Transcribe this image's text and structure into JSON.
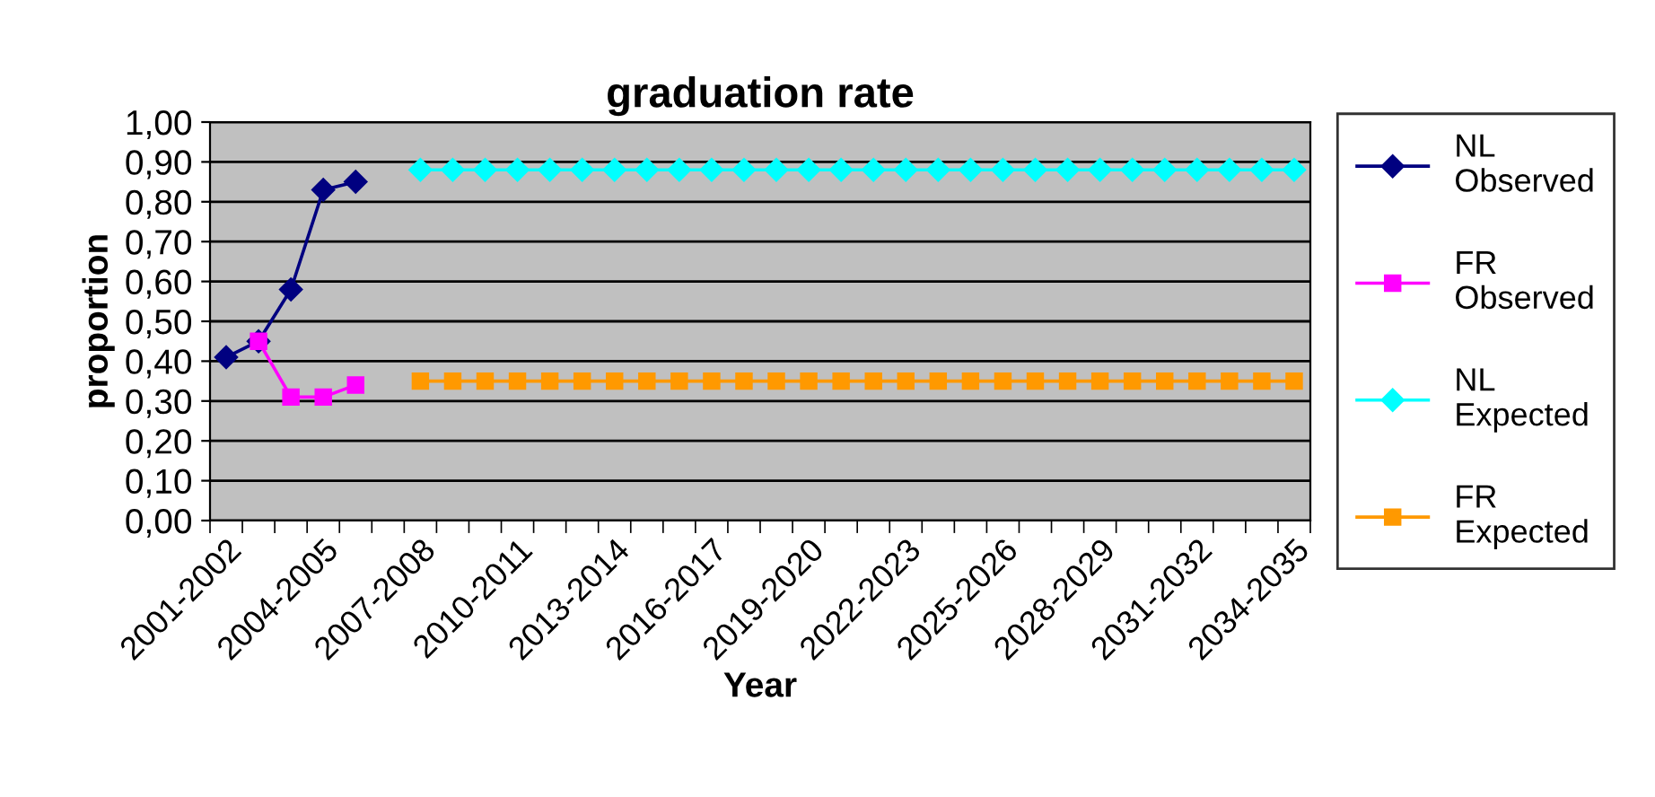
{
  "chart_data": {
    "type": "line",
    "title": "graduation rate",
    "xlabel": "Year",
    "ylabel": "proportion",
    "categories": [
      "2001-2002",
      null,
      null,
      "2004-2005",
      null,
      null,
      "2007-2008",
      null,
      null,
      "2010-2011",
      null,
      null,
      "2013-2014",
      null,
      null,
      "2016-2017",
      null,
      null,
      "2019-2020",
      null,
      null,
      "2022-2023",
      null,
      null,
      "2025-2026",
      null,
      null,
      "2028-2029",
      null,
      null,
      "2031-2032",
      null,
      null,
      "2034-2035"
    ],
    "series": [
      {
        "name": "NL Observed",
        "color": "#000080",
        "marker": "diamond",
        "values": [
          0.41,
          0.45,
          0.58,
          0.83,
          0.85,
          null,
          null,
          null,
          null,
          null,
          null,
          null,
          null,
          null,
          null,
          null,
          null,
          null,
          null,
          null,
          null,
          null,
          null,
          null,
          null,
          null,
          null,
          null,
          null,
          null,
          null,
          null,
          null,
          null
        ]
      },
      {
        "name": "FR Observed",
        "color": "#ff00ff",
        "marker": "square",
        "values": [
          null,
          0.45,
          0.31,
          0.31,
          0.34,
          null,
          null,
          null,
          null,
          null,
          null,
          null,
          null,
          null,
          null,
          null,
          null,
          null,
          null,
          null,
          null,
          null,
          null,
          null,
          null,
          null,
          null,
          null,
          null,
          null,
          null,
          null,
          null,
          null
        ]
      },
      {
        "name": "NL Expected",
        "color": "#00ffff",
        "marker": "diamond",
        "values": [
          null,
          null,
          null,
          null,
          null,
          null,
          0.88,
          0.88,
          0.88,
          0.88,
          0.88,
          0.88,
          0.88,
          0.88,
          0.88,
          0.88,
          0.88,
          0.88,
          0.88,
          0.88,
          0.88,
          0.88,
          0.88,
          0.88,
          0.88,
          0.88,
          0.88,
          0.88,
          0.88,
          0.88,
          0.88,
          0.88,
          0.88,
          0.88
        ]
      },
      {
        "name": "FR Expected",
        "color": "#ff9900",
        "marker": "square",
        "values": [
          null,
          null,
          null,
          null,
          null,
          null,
          0.35,
          0.35,
          0.35,
          0.35,
          0.35,
          0.35,
          0.35,
          0.35,
          0.35,
          0.35,
          0.35,
          0.35,
          0.35,
          0.35,
          0.35,
          0.35,
          0.35,
          0.35,
          0.35,
          0.35,
          0.35,
          0.35,
          0.35,
          0.35,
          0.35,
          0.35,
          0.35,
          0.35
        ]
      }
    ],
    "ylim": [
      0,
      1
    ],
    "yticks": [
      {
        "value": 0,
        "label": "0,00"
      },
      {
        "value": 0.1,
        "label": "0,10"
      },
      {
        "value": 0.2,
        "label": "0,20"
      },
      {
        "value": 0.3,
        "label": "0,30"
      },
      {
        "value": 0.4,
        "label": "0,40"
      },
      {
        "value": 0.5,
        "label": "0,50"
      },
      {
        "value": 0.6,
        "label": "0,60"
      },
      {
        "value": 0.7,
        "label": "0,70"
      },
      {
        "value": 0.8,
        "label": "0,80"
      },
      {
        "value": 0.9,
        "label": "0,90"
      },
      {
        "value": 1,
        "label": "1,00"
      }
    ],
    "grid": "y",
    "legend": "right",
    "line_style": "solid"
  }
}
